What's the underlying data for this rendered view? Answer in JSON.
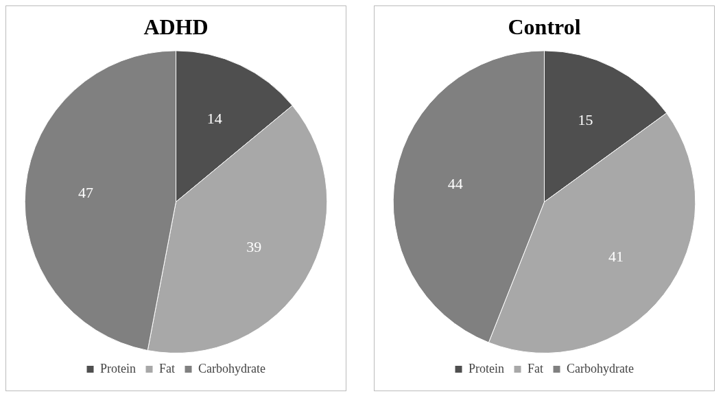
{
  "chart_data": [
    {
      "type": "pie",
      "title": "ADHD",
      "categories": [
        "Protein",
        "Fat",
        "Carbohydrate"
      ],
      "values": [
        14,
        39,
        47
      ],
      "colors": [
        "#4f4f4f",
        "#a8a8a8",
        "#808080"
      ],
      "data_labels": true,
      "legend": "bottom"
    },
    {
      "type": "pie",
      "title": "Control",
      "categories": [
        "Protein",
        "Fat",
        "Carbohydrate"
      ],
      "values": [
        15,
        41,
        44
      ],
      "colors": [
        "#4f4f4f",
        "#a8a8a8",
        "#808080"
      ],
      "data_labels": true,
      "legend": "bottom"
    }
  ]
}
